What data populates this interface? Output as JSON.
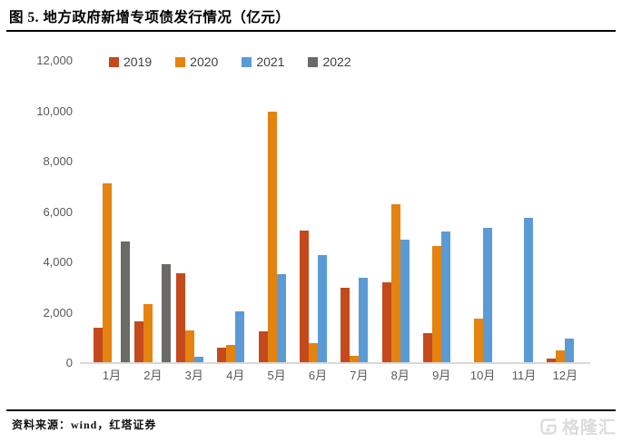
{
  "title": "图 5. 地方政府新增专项债发行情况（亿元）",
  "source_note": "资料来源：wind，红塔证券",
  "watermark": {
    "text": "格隆汇",
    "icon": "gelonghui-g-icon"
  },
  "colors": {
    "series_2019": "#C44A1D",
    "series_2020": "#E48310",
    "series_2021": "#5B9BD5",
    "series_2022": "#6C6A67",
    "axis_text": "#595959",
    "axis_line": "#D9D9D9",
    "watermark": "#DCDCDC"
  },
  "chart_data": {
    "type": "bar",
    "title": "地方政府新增专项债发行情况（亿元）",
    "categories": [
      "1月",
      "2月",
      "3月",
      "4月",
      "5月",
      "6月",
      "7月",
      "8月",
      "9月",
      "10月",
      "11月",
      "12月"
    ],
    "series": [
      {
        "name": "2019",
        "color": "#C44A1D",
        "values": [
          1412,
          1667,
          3562,
          627,
          1251,
          5258,
          2983,
          3205,
          1195,
          0,
          0,
          172
        ]
      },
      {
        "name": "2020",
        "color": "#E48310",
        "values": [
          7148,
          2350,
          1307,
          717,
          9980,
          798,
          288,
          6307,
          4634,
          1762,
          0,
          489
        ]
      },
      {
        "name": "2021",
        "color": "#5B9BD5",
        "values": [
          0,
          0,
          264,
          2056,
          3521,
          4302,
          3403,
          4884,
          5231,
          5372,
          5772,
          975
        ]
      },
      {
        "name": "2022",
        "color": "#6C6A67",
        "values": [
          4844,
          3930,
          0,
          0,
          0,
          0,
          0,
          0,
          0,
          0,
          0,
          0
        ]
      }
    ],
    "xlabel": "",
    "ylabel": "",
    "ylim": [
      0,
      12000
    ],
    "ytick_step": 2000,
    "ytick_labels": [
      "0",
      "2,000",
      "4,000",
      "6,000",
      "8,000",
      "10,000",
      "12,000"
    ],
    "legend_position": "top",
    "grid": false
  }
}
